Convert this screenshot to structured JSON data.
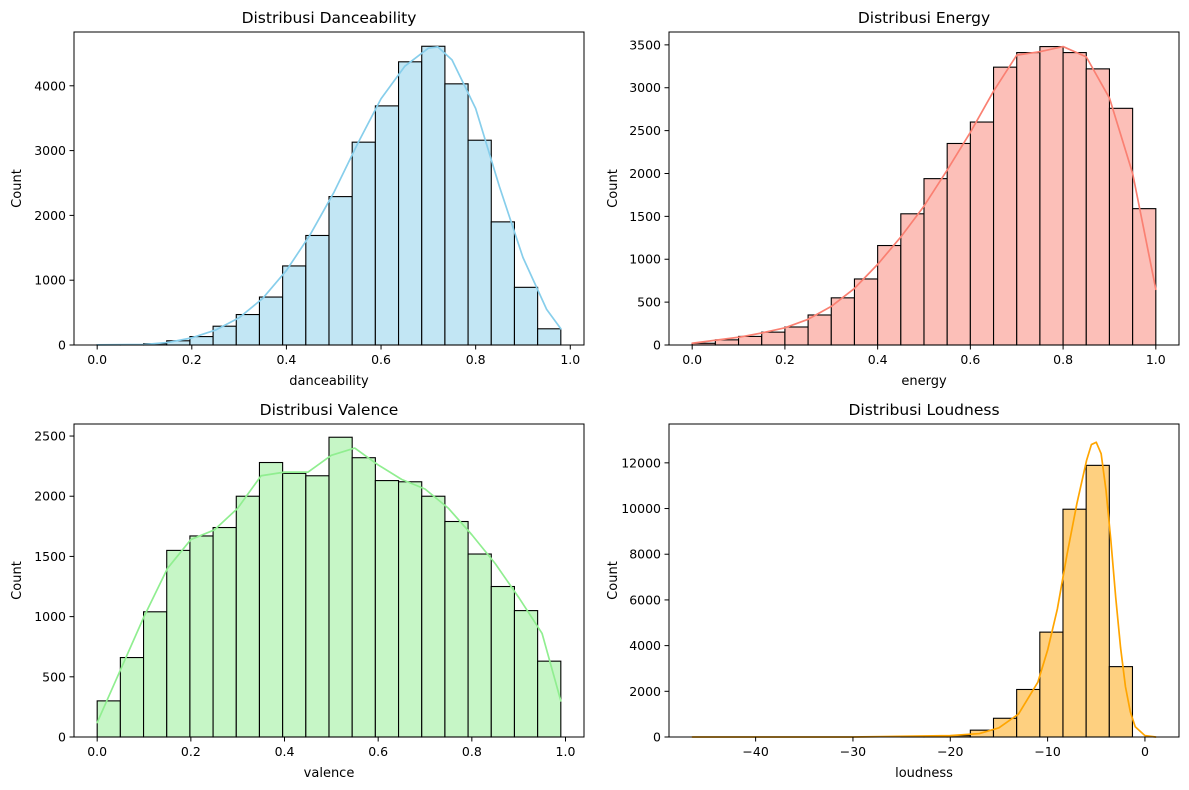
{
  "chart_data": [
    {
      "type": "bar",
      "title": "Distribusi Danceability",
      "xlabel": "danceability",
      "ylabel": "Count",
      "color": "#87CEEB",
      "fill": "#C2E6F4",
      "xlim": [
        -0.049,
        1.029
      ],
      "ylim": [
        0,
        4830
      ],
      "xticks": [
        0.0,
        0.2,
        0.4,
        0.6,
        0.8,
        1.0
      ],
      "xtick_labels": [
        "0.0",
        "0.2",
        "0.4",
        "0.6",
        "0.8",
        "1.0"
      ],
      "yticks": [
        0,
        1000,
        2000,
        3000,
        4000
      ],
      "ytick_labels": [
        "0",
        "1000",
        "2000",
        "3000",
        "4000"
      ],
      "bin_edges": [
        0.0,
        0.049,
        0.098,
        0.147,
        0.196,
        0.245,
        0.294,
        0.343,
        0.392,
        0.441,
        0.49,
        0.539,
        0.588,
        0.637,
        0.686,
        0.735,
        0.784,
        0.833,
        0.882,
        0.931,
        0.98
      ],
      "values": [
        5,
        5,
        20,
        65,
        130,
        290,
        470,
        740,
        1220,
        1690,
        2290,
        3130,
        3690,
        4370,
        4610,
        4030,
        3160,
        1900,
        890,
        250
      ],
      "kde_x": [
        0.0,
        0.1,
        0.15,
        0.2,
        0.25,
        0.3,
        0.35,
        0.4,
        0.45,
        0.5,
        0.55,
        0.6,
        0.65,
        0.7,
        0.72,
        0.75,
        0.8,
        0.85,
        0.9,
        0.95,
        0.98
      ],
      "kde_y": [
        2,
        8,
        40,
        110,
        230,
        420,
        720,
        1150,
        1700,
        2350,
        3100,
        3800,
        4300,
        4580,
        4600,
        4400,
        3650,
        2450,
        1350,
        550,
        250
      ]
    },
    {
      "type": "bar",
      "title": "Distribusi Energy",
      "xlabel": "energy",
      "ylabel": "Count",
      "color": "#FA8072",
      "fill": "#FCBFB8",
      "xlim": [
        -0.05,
        1.05
      ],
      "ylim": [
        0,
        3650
      ],
      "xticks": [
        0.0,
        0.2,
        0.4,
        0.6,
        0.8,
        1.0
      ],
      "xtick_labels": [
        "0.0",
        "0.2",
        "0.4",
        "0.6",
        "0.8",
        "1.0"
      ],
      "yticks": [
        0,
        500,
        1000,
        1500,
        2000,
        2500,
        3000,
        3500
      ],
      "ytick_labels": [
        "0",
        "500",
        "1000",
        "1500",
        "2000",
        "2500",
        "3000",
        "3500"
      ],
      "bin_edges": [
        0.0,
        0.05,
        0.1,
        0.15,
        0.2,
        0.25,
        0.3,
        0.35,
        0.4,
        0.45,
        0.5,
        0.55,
        0.6,
        0.65,
        0.7,
        0.75,
        0.8,
        0.85,
        0.9,
        0.95,
        1.0
      ],
      "values": [
        20,
        60,
        100,
        150,
        210,
        350,
        550,
        770,
        1160,
        1530,
        1940,
        2350,
        2600,
        3240,
        3410,
        3480,
        3410,
        3220,
        2760,
        1590
      ],
      "kde_x": [
        0.0,
        0.05,
        0.1,
        0.15,
        0.2,
        0.25,
        0.3,
        0.35,
        0.4,
        0.45,
        0.5,
        0.55,
        0.6,
        0.65,
        0.7,
        0.75,
        0.8,
        0.85,
        0.9,
        0.95,
        1.0
      ],
      "kde_y": [
        20,
        55,
        90,
        140,
        200,
        300,
        450,
        660,
        940,
        1260,
        1620,
        2040,
        2480,
        2960,
        3380,
        3420,
        3480,
        3360,
        2880,
        2000,
        650
      ]
    },
    {
      "type": "bar",
      "title": "Distribusi Valence",
      "xlabel": "valence",
      "ylabel": "Count",
      "color": "#90EE90",
      "fill": "#C6F6C6",
      "xlim": [
        -0.0495,
        1.0395
      ],
      "ylim": [
        0,
        2600
      ],
      "xticks": [
        0.0,
        0.2,
        0.4,
        0.6,
        0.8,
        1.0
      ],
      "xtick_labels": [
        "0.0",
        "0.2",
        "0.4",
        "0.6",
        "0.8",
        "1.0"
      ],
      "yticks": [
        0,
        500,
        1000,
        1500,
        2000,
        2500
      ],
      "ytick_labels": [
        "0",
        "500",
        "1000",
        "1500",
        "2000",
        "2500"
      ],
      "bin_edges": [
        0.0,
        0.0495,
        0.099,
        0.1485,
        0.198,
        0.2475,
        0.297,
        0.3465,
        0.396,
        0.4455,
        0.495,
        0.5445,
        0.594,
        0.6435,
        0.693,
        0.7425,
        0.792,
        0.8415,
        0.891,
        0.9405,
        0.99
      ],
      "values": [
        300,
        660,
        1040,
        1550,
        1670,
        1740,
        2000,
        2280,
        2190,
        2170,
        2490,
        2320,
        2130,
        2120,
        2000,
        1790,
        1520,
        1250,
        1050,
        630
      ],
      "kde_x": [
        0.0,
        0.05,
        0.1,
        0.15,
        0.2,
        0.25,
        0.3,
        0.35,
        0.4,
        0.45,
        0.5,
        0.55,
        0.6,
        0.65,
        0.7,
        0.75,
        0.8,
        0.85,
        0.9,
        0.95,
        0.99
      ],
      "kde_y": [
        120,
        560,
        1000,
        1400,
        1640,
        1720,
        1900,
        2170,
        2200,
        2200,
        2340,
        2400,
        2260,
        2140,
        2060,
        1900,
        1680,
        1440,
        1160,
        860,
        300
      ]
    },
    {
      "type": "bar",
      "title": "Distribusi Loudness",
      "xlabel": "loudness",
      "ylabel": "Count",
      "color": "#FFA500",
      "fill": "#FED080",
      "xlim": [
        -48.9,
        3.5
      ],
      "ylim": [
        0,
        13700
      ],
      "xticks": [
        -40,
        -30,
        -20,
        -10,
        0
      ],
      "xtick_labels": [
        "−40",
        "−30",
        "−20",
        "−10",
        "0"
      ],
      "yticks": [
        0,
        2000,
        4000,
        6000,
        8000,
        10000,
        12000
      ],
      "ytick_labels": [
        "0",
        "2000",
        "4000",
        "6000",
        "8000",
        "10000",
        "12000"
      ],
      "bin_edges": [
        -46.5,
        -44.12,
        -41.74,
        -39.36,
        -36.98,
        -34.6,
        -32.22,
        -29.84,
        -27.46,
        -25.08,
        -22.7,
        -20.32,
        -17.94,
        -15.56,
        -13.18,
        -10.8,
        -8.42,
        -6.04,
        -3.66,
        -1.28,
        1.1
      ],
      "values": [
        0,
        0,
        0,
        0,
        0,
        0,
        0,
        0,
        0,
        5,
        20,
        60,
        300,
        820,
        2080,
        4590,
        9970,
        11890,
        3080,
        0
      ],
      "kde_x": [
        -46.5,
        -40,
        -30,
        -20,
        -17,
        -15,
        -13,
        -11,
        -10,
        -9,
        -8,
        -7,
        -6,
        -5.5,
        -5,
        -4.5,
        -4,
        -3.5,
        -3,
        -2.5,
        -2,
        -1.5,
        -1,
        0,
        1.1
      ],
      "kde_y": [
        0,
        0,
        0,
        60,
        150,
        400,
        1000,
        2400,
        3800,
        5600,
        8000,
        10200,
        12100,
        12800,
        12900,
        12400,
        10800,
        8600,
        6100,
        3900,
        2200,
        1100,
        450,
        60,
        0
      ]
    }
  ]
}
